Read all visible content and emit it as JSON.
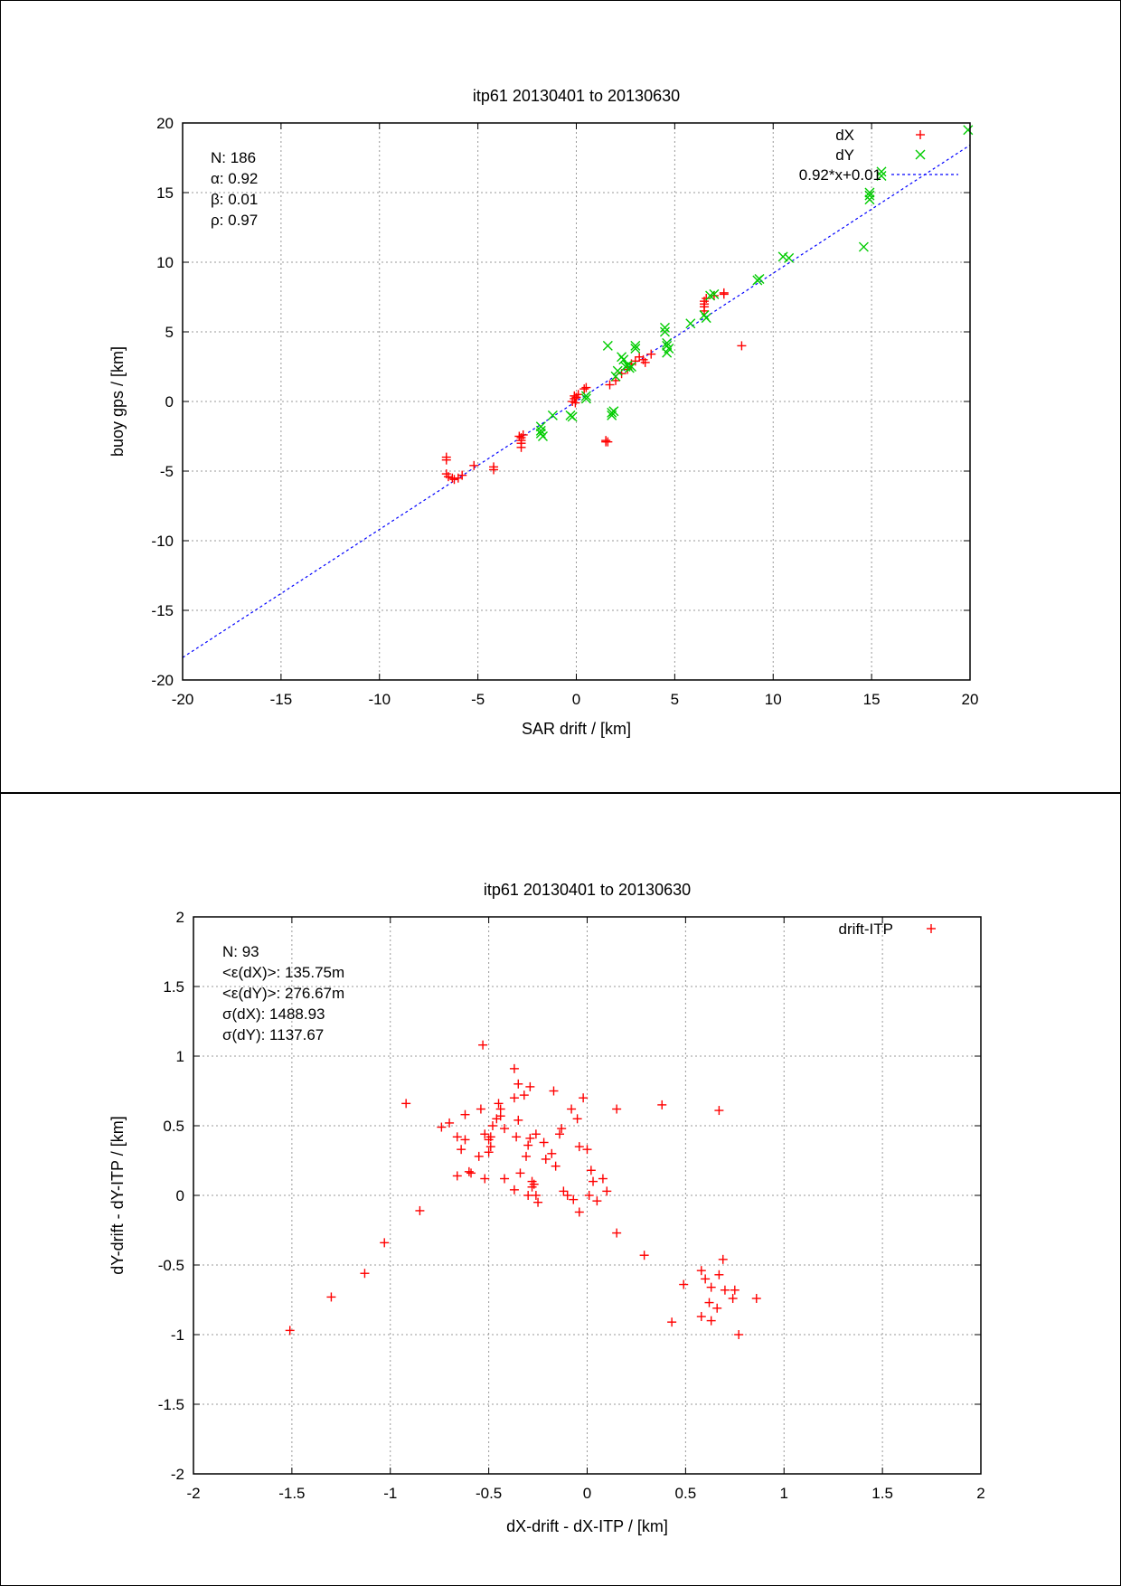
{
  "chart_data": [
    {
      "type": "scatter",
      "title": "itp61 20130401 to 20130630",
      "xlabel": "SAR drift / [km]",
      "ylabel": "buoy gps / [km]",
      "xlim": [
        -20,
        20
      ],
      "ylim": [
        -20,
        20
      ],
      "xticks": [
        -20,
        -15,
        -10,
        -5,
        0,
        5,
        10,
        15,
        20
      ],
      "yticks": [
        -20,
        -15,
        -10,
        -5,
        0,
        5,
        10,
        15,
        20
      ],
      "xtick_labels": [
        "-20",
        "-15",
        "-10",
        "-5",
        "0",
        "5",
        "10",
        "15",
        "20"
      ],
      "ytick_labels": [
        "-20",
        "-15",
        "-10",
        "-5",
        "0",
        "5",
        "10",
        "15",
        "20"
      ],
      "grid": true,
      "legend_position": "top-right",
      "stats": [
        "N: 186",
        "α: 0.92",
        "β: 0.01",
        "ρ: 0.97"
      ],
      "series": [
        {
          "name": "dX",
          "marker": "plus",
          "color": "#ff0000",
          "points": [
            [
              -6.6,
              -4.0
            ],
            [
              -6.6,
              -4.2
            ],
            [
              -6.6,
              -5.2
            ],
            [
              -6.5,
              -5.4
            ],
            [
              -6.3,
              -5.5
            ],
            [
              -6.2,
              -5.6
            ],
            [
              -6.0,
              -5.5
            ],
            [
              -5.8,
              -5.3
            ],
            [
              -5.2,
              -4.6
            ],
            [
              -4.2,
              -4.7
            ],
            [
              -4.2,
              -4.9
            ],
            [
              -2.9,
              -2.5
            ],
            [
              -2.8,
              -2.6
            ],
            [
              -2.8,
              -2.8
            ],
            [
              -2.8,
              -3.0
            ],
            [
              -2.8,
              -3.3
            ],
            [
              -2.7,
              -2.4
            ],
            [
              -0.2,
              0.0
            ],
            [
              -0.1,
              0.2
            ],
            [
              -0.1,
              0.4
            ],
            [
              -0.05,
              -0.1
            ],
            [
              0.0,
              0.3
            ],
            [
              0.1,
              0.5
            ],
            [
              0.4,
              0.9
            ],
            [
              0.5,
              1.0
            ],
            [
              1.5,
              -2.8
            ],
            [
              1.5,
              -2.9
            ],
            [
              1.6,
              -2.9
            ],
            [
              1.7,
              1.2
            ],
            [
              2.0,
              1.5
            ],
            [
              2.3,
              2.0
            ],
            [
              2.6,
              2.3
            ],
            [
              2.8,
              2.7
            ],
            [
              3.0,
              2.9
            ],
            [
              3.2,
              3.2
            ],
            [
              3.4,
              3.0
            ],
            [
              3.5,
              2.8
            ],
            [
              3.8,
              3.4
            ],
            [
              6.5,
              6.5
            ],
            [
              6.5,
              6.8
            ],
            [
              6.5,
              7.0
            ],
            [
              6.5,
              7.2
            ],
            [
              6.6,
              7.4
            ],
            [
              7.0,
              7.6
            ],
            [
              7.5,
              7.7
            ],
            [
              7.5,
              7.8
            ],
            [
              8.4,
              4.0
            ]
          ]
        },
        {
          "name": "dY",
          "marker": "cross",
          "color": "#00cc00",
          "points": [
            [
              -1.8,
              -1.8
            ],
            [
              -1.8,
              -2.1
            ],
            [
              -1.8,
              -2.3
            ],
            [
              -1.7,
              -2.5
            ],
            [
              -1.2,
              -1.0
            ],
            [
              -0.3,
              -1.0
            ],
            [
              -0.2,
              -1.1
            ],
            [
              0.5,
              0.2
            ],
            [
              0.5,
              0.4
            ],
            [
              1.6,
              4.0
            ],
            [
              1.8,
              -0.8
            ],
            [
              1.8,
              -1.0
            ],
            [
              1.9,
              -0.7
            ],
            [
              2.0,
              1.8
            ],
            [
              2.1,
              2.2
            ],
            [
              2.3,
              3.2
            ],
            [
              2.4,
              3.0
            ],
            [
              2.5,
              2.5
            ],
            [
              2.6,
              2.6
            ],
            [
              2.7,
              2.4
            ],
            [
              2.8,
              2.5
            ],
            [
              3.0,
              3.8
            ],
            [
              3.0,
              4.0
            ],
            [
              4.5,
              5.0
            ],
            [
              4.5,
              5.3
            ],
            [
              4.6,
              3.5
            ],
            [
              4.6,
              4.0
            ],
            [
              4.6,
              4.2
            ],
            [
              4.7,
              3.8
            ],
            [
              5.8,
              5.6
            ],
            [
              6.5,
              6.2
            ],
            [
              6.6,
              6.0
            ],
            [
              6.8,
              7.6
            ],
            [
              7.0,
              7.7
            ],
            [
              9.2,
              8.7
            ],
            [
              9.3,
              8.8
            ],
            [
              10.5,
              10.4
            ],
            [
              10.8,
              10.3
            ],
            [
              14.6,
              11.1
            ],
            [
              14.9,
              14.5
            ],
            [
              14.9,
              14.8
            ],
            [
              14.9,
              15.0
            ],
            [
              15.5,
              16.2
            ],
            [
              15.5,
              16.5
            ],
            [
              19.9,
              19.5
            ]
          ]
        }
      ],
      "fit_line": {
        "label": "0.92*x+0.01",
        "slope": 0.92,
        "intercept": 0.01,
        "color": "#0000ff"
      }
    },
    {
      "type": "scatter",
      "title": "itp61 20130401 to 20130630",
      "xlabel": "dX-drift - dX-ITP / [km]",
      "ylabel": "dY-drift - dY-ITP / [km]",
      "xlim": [
        -2,
        2
      ],
      "ylim": [
        -2,
        2
      ],
      "xticks": [
        -2,
        -1.5,
        -1,
        -0.5,
        0,
        0.5,
        1,
        1.5,
        2
      ],
      "yticks": [
        -2,
        -1.5,
        -1,
        -0.5,
        0,
        0.5,
        1,
        1.5,
        2
      ],
      "xtick_labels": [
        "-2",
        "-1.5",
        "-1",
        "-0.5",
        "0",
        "0.5",
        "1",
        "1.5",
        "2"
      ],
      "ytick_labels": [
        "-2",
        "-1.5",
        "-1",
        "-0.5",
        "0",
        "0.5",
        "1",
        "1.5",
        "2"
      ],
      "grid": true,
      "legend_position": "top-right",
      "stats": [
        "N: 93",
        "<ε(dX)>:  135.75m",
        "<ε(dY)>: 276.67m",
        "σ(dX):  1488.93",
        "σ(dY):  1137.67"
      ],
      "series": [
        {
          "name": "drift-ITP",
          "marker": "plus",
          "color": "#ff0000",
          "points": [
            [
              -1.51,
              -0.97
            ],
            [
              -1.3,
              -0.73
            ],
            [
              -1.13,
              -0.56
            ],
            [
              -1.03,
              -0.34
            ],
            [
              -0.85,
              -0.11
            ],
            [
              -0.92,
              0.66
            ],
            [
              -0.74,
              0.49
            ],
            [
              -0.7,
              0.52
            ],
            [
              -0.66,
              0.42
            ],
            [
              -0.62,
              0.58
            ],
            [
              -0.64,
              0.33
            ],
            [
              -0.62,
              0.4
            ],
            [
              -0.66,
              0.14
            ],
            [
              -0.59,
              0.16
            ],
            [
              -0.55,
              0.28
            ],
            [
              -0.54,
              0.62
            ],
            [
              -0.52,
              0.44
            ],
            [
              -0.52,
              0.12
            ],
            [
              -0.5,
              0.4
            ],
            [
              -0.49,
              0.35
            ],
            [
              -0.49,
              0.42
            ],
            [
              -0.48,
              0.5
            ],
            [
              -0.46,
              0.55
            ],
            [
              -0.45,
              0.66
            ],
            [
              -0.44,
              0.62
            ],
            [
              -0.44,
              0.57
            ],
            [
              -0.42,
              0.12
            ],
            [
              -0.37,
              0.7
            ],
            [
              -0.37,
              0.04
            ],
            [
              -0.36,
              0.42
            ],
            [
              -0.35,
              0.8
            ],
            [
              -0.34,
              0.16
            ],
            [
              -0.32,
              0.72
            ],
            [
              -0.31,
              0.28
            ],
            [
              -0.3,
              0.36
            ],
            [
              -0.29,
              0.78
            ],
            [
              -0.29,
              0.41
            ],
            [
              -0.28,
              0.1
            ],
            [
              -0.28,
              0.06
            ],
            [
              -0.26,
              0.44
            ],
            [
              -0.26,
              0.0
            ],
            [
              -0.25,
              -0.05
            ],
            [
              -0.27,
              0.08
            ],
            [
              -0.21,
              0.26
            ],
            [
              -0.17,
              0.75
            ],
            [
              -0.16,
              0.21
            ],
            [
              -0.14,
              0.44
            ],
            [
              -0.13,
              0.48
            ],
            [
              -0.12,
              0.03
            ],
            [
              -0.1,
              0.0
            ],
            [
              -0.08,
              0.62
            ],
            [
              -0.07,
              -0.03
            ],
            [
              -0.05,
              0.55
            ],
            [
              -0.04,
              0.35
            ],
            [
              -0.04,
              -0.12
            ],
            [
              -0.02,
              0.7
            ],
            [
              0.0,
              0.33
            ],
            [
              0.01,
              0.0
            ],
            [
              0.03,
              0.1
            ],
            [
              0.05,
              -0.04
            ],
            [
              0.1,
              0.03
            ],
            [
              0.15,
              0.62
            ],
            [
              0.15,
              -0.27
            ],
            [
              0.29,
              -0.43
            ],
            [
              0.38,
              0.65
            ],
            [
              0.43,
              -0.91
            ],
            [
              0.49,
              -0.64
            ],
            [
              0.58,
              -0.54
            ],
            [
              0.58,
              -0.87
            ],
            [
              0.62,
              -0.77
            ],
            [
              0.63,
              -0.66
            ],
            [
              0.63,
              -0.9
            ],
            [
              0.66,
              -0.81
            ],
            [
              0.67,
              0.61
            ],
            [
              0.67,
              -0.57
            ],
            [
              0.69,
              -0.46
            ],
            [
              0.7,
              -0.68
            ],
            [
              0.74,
              -0.74
            ],
            [
              0.75,
              -0.68
            ],
            [
              0.77,
              -1.0
            ],
            [
              0.86,
              -0.74
            ],
            [
              -0.53,
              1.08
            ],
            [
              -0.37,
              0.91
            ],
            [
              -0.6,
              0.17
            ],
            [
              -0.42,
              0.48
            ],
            [
              -0.3,
              0.0
            ],
            [
              -0.18,
              0.3
            ],
            [
              0.02,
              0.18
            ],
            [
              -0.5,
              0.31
            ],
            [
              -0.35,
              0.54
            ],
            [
              -0.22,
              0.38
            ],
            [
              0.08,
              0.12
            ],
            [
              0.6,
              -0.6
            ]
          ]
        }
      ]
    }
  ]
}
